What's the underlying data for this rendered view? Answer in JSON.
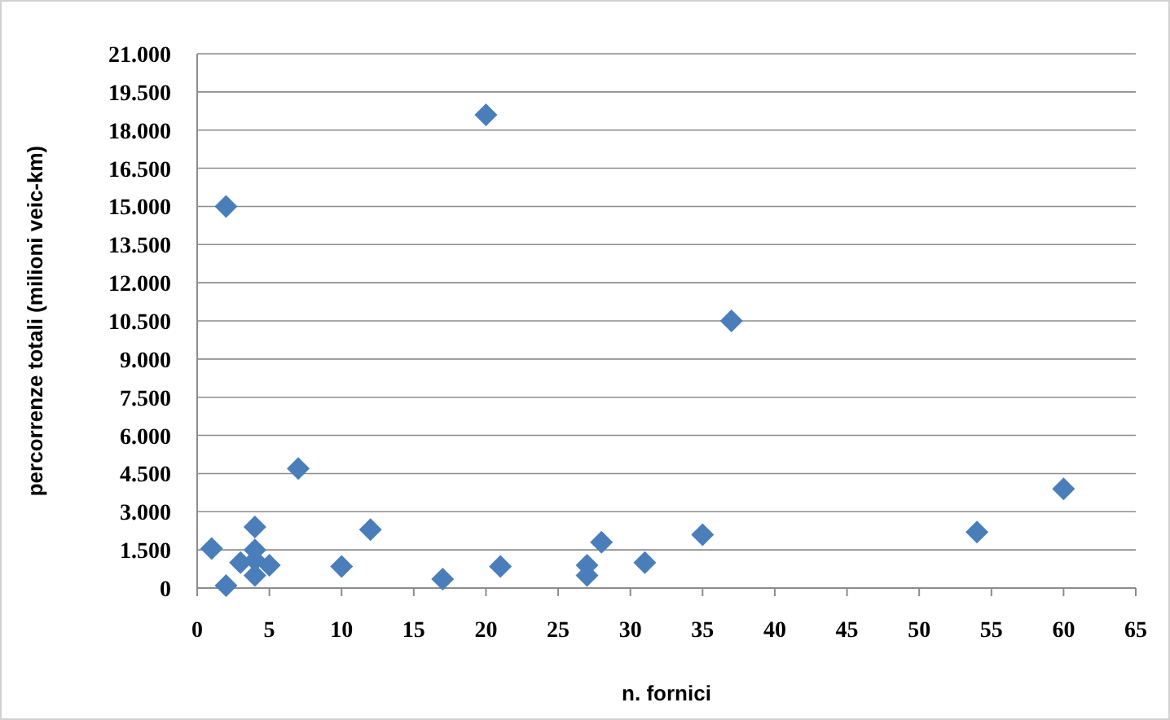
{
  "chart_data": {
    "type": "scatter",
    "xlabel": "n. fornici",
    "ylabel": "percorrenze totali (milioni veic-km)",
    "x": [
      1,
      2,
      2,
      3,
      3.5,
      4,
      4,
      4,
      4,
      5,
      7,
      10,
      12,
      17,
      20,
      21,
      27,
      27,
      28,
      31,
      35,
      37,
      54,
      60
    ],
    "series": [
      {
        "color": "#4a7ebb",
        "values": [
          1550,
          100,
          15000,
          1000,
          null,
          2400,
          1500,
          1100,
          500,
          900,
          4700,
          850,
          2300,
          350,
          18600,
          850,
          900,
          500,
          1800,
          1000,
          2100,
          10500,
          2200,
          3900
        ]
      }
    ],
    "marker": "diamond",
    "grid": "y",
    "xlim": [
      0,
      65
    ],
    "xticks": [
      0,
      5,
      10,
      15,
      20,
      25,
      30,
      35,
      40,
      45,
      50,
      55,
      60,
      65
    ],
    "ylim": [
      0,
      21000
    ],
    "yticks": [
      0,
      {
        "value": 1500,
        "label": "1.500"
      },
      {
        "value": 3000,
        "label": "3.000"
      },
      {
        "value": 4500,
        "label": "4.500"
      },
      {
        "value": 6000,
        "label": "6.000"
      },
      {
        "value": 7500,
        "label": "7.500"
      },
      {
        "value": 9000,
        "label": "9.000"
      },
      {
        "value": 10500,
        "label": "10.500"
      },
      {
        "value": 12000,
        "label": "12.000"
      },
      {
        "value": 13500,
        "label": "13.500"
      },
      {
        "value": 15000,
        "label": "15.000"
      },
      {
        "value": 16500,
        "label": "16.500"
      },
      {
        "value": 18000,
        "label": "18.000"
      },
      {
        "value": 19500,
        "label": "19.500"
      },
      {
        "value": 21000,
        "label": "21.000"
      }
    ]
  }
}
